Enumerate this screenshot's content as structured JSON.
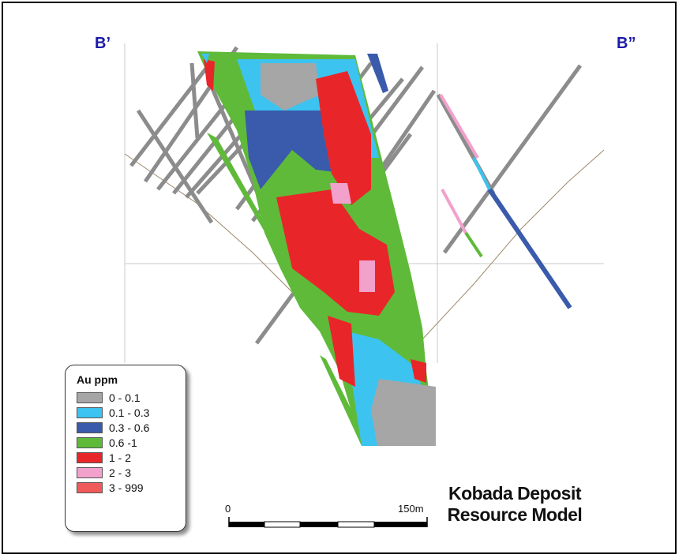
{
  "section_labels": {
    "left": "B’",
    "right": "B”"
  },
  "legend": {
    "title": "Au ppm",
    "items": [
      {
        "label": "0 - 0.1",
        "color": "#a6a6a6"
      },
      {
        "label": "0.1 - 0.3",
        "color": "#3cc3f0"
      },
      {
        "label": "0.3 - 0.6",
        "color": "#3a5bab"
      },
      {
        "label": "0.6 -1",
        "color": "#5fba3a"
      },
      {
        "label": "1 - 2",
        "color": "#e8262a"
      },
      {
        "label": "2 - 3",
        "color": "#f2a0cc"
      },
      {
        "label": "3 - 999",
        "color": "#f05a5a"
      }
    ]
  },
  "scale_bar": {
    "start_label": "0",
    "end_label": "150m"
  },
  "title": {
    "line1": "Kobada Deposit",
    "line2": "Resource Model"
  }
}
